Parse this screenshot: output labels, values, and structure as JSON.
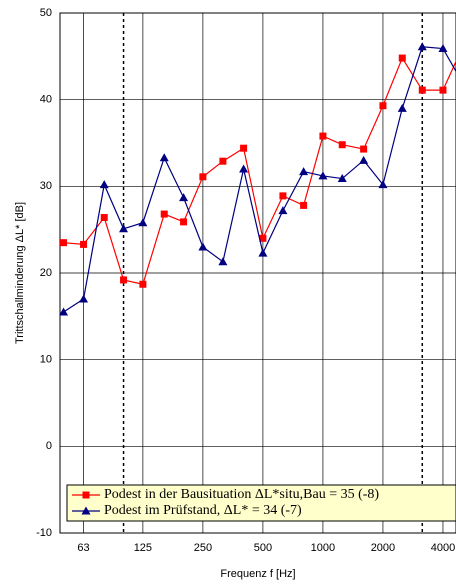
{
  "chart_data": {
    "type": "line",
    "ylabel": "Trittschallminderung ΔL* [dB]",
    "xlabel": "Frequenz f [Hz]",
    "x": [
      50,
      63,
      80,
      100,
      125,
      160,
      200,
      250,
      315,
      400,
      500,
      630,
      800,
      1000,
      1250,
      1600,
      2000,
      2500,
      3150,
      4000,
      5000
    ],
    "series": [
      {
        "name": "Podest in der Bausituation ΔL*situ,Bau = 35 (-8)",
        "color": "#ff0000",
        "marker": "square",
        "values": [
          23.5,
          23.3,
          26.4,
          19.2,
          18.7,
          26.8,
          25.9,
          31.1,
          32.9,
          34.4,
          24.0,
          28.9,
          27.8,
          35.8,
          34.8,
          34.3,
          39.3,
          44.8,
          41.1,
          41.1,
          46
        ]
      },
      {
        "name": "Podest im Prüfstand, ΔL* = 34 (-7)",
        "color": "#000080",
        "marker": "triangle",
        "values": [
          15.5,
          17.0,
          30.2,
          25.1,
          25.8,
          33.3,
          28.7,
          23.0,
          21.3,
          32.0,
          22.3,
          27.2,
          31.7,
          31.2,
          30.9,
          33.0,
          30.2,
          39.0,
          46.1,
          45.9,
          42
        ]
      }
    ],
    "xscale": "log",
    "xlim": [
      48,
      4650
    ],
    "xticks": [
      63,
      125,
      250,
      500,
      1000,
      2000,
      4000
    ],
    "vlines": [
      100,
      3150
    ],
    "ylim": [
      -10,
      50
    ],
    "yticks": [
      -10,
      0,
      10,
      20,
      30,
      40,
      50
    ],
    "grid": true
  }
}
